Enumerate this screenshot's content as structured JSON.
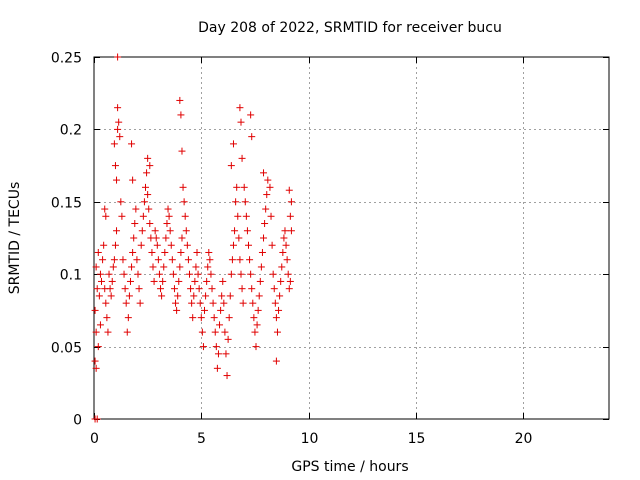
{
  "chart_data": {
    "type": "scatter",
    "title": "Day 208 of 2022, SRMTID for receiver bucu",
    "xlabel": "GPS time / hours",
    "ylabel": "SRMTID / TECUs",
    "xlim": [
      0,
      24
    ],
    "ylim": [
      0,
      0.25
    ],
    "x_ticks": [
      0,
      5,
      10,
      15,
      20
    ],
    "x_tick_labels": [
      "0",
      "5",
      "10",
      "15",
      "20"
    ],
    "y_ticks": [
      0,
      0.05,
      0.1,
      0.15,
      0.2,
      0.25
    ],
    "y_tick_labels": [
      "0",
      "0.05",
      "0.1",
      "0.15",
      "0.2",
      "0.25"
    ],
    "grid": true,
    "marker": "+",
    "color": "#e00000",
    "series": [
      {
        "name": "SRMTID",
        "points": [
          [
            0.05,
            0.0
          ],
          [
            0.15,
            0.0
          ],
          [
            0.1,
            0.035
          ],
          [
            0.05,
            0.04
          ],
          [
            0.2,
            0.05
          ],
          [
            0.1,
            0.06
          ],
          [
            0.3,
            0.065
          ],
          [
            0.05,
            0.075
          ],
          [
            0.25,
            0.085
          ],
          [
            0.15,
            0.09
          ],
          [
            0.35,
            0.095
          ],
          [
            0.1,
            0.105
          ],
          [
            0.4,
            0.11
          ],
          [
            0.2,
            0.115
          ],
          [
            0.45,
            0.12
          ],
          [
            0.3,
            0.1
          ],
          [
            0.5,
            0.09
          ],
          [
            0.55,
            0.08
          ],
          [
            0.6,
            0.07
          ],
          [
            0.65,
            0.06
          ],
          [
            0.5,
            0.145
          ],
          [
            0.55,
            0.14
          ],
          [
            0.7,
            0.1
          ],
          [
            0.75,
            0.09
          ],
          [
            0.8,
            0.085
          ],
          [
            0.85,
            0.095
          ],
          [
            0.9,
            0.105
          ],
          [
            0.95,
            0.11
          ],
          [
            1.0,
            0.12
          ],
          [
            1.05,
            0.13
          ],
          [
            0.95,
            0.19
          ],
          [
            1.0,
            0.175
          ],
          [
            1.05,
            0.165
          ],
          [
            1.1,
            0.2
          ],
          [
            1.1,
            0.215
          ],
          [
            1.15,
            0.205
          ],
          [
            1.2,
            0.195
          ],
          [
            1.1,
            0.25
          ],
          [
            1.25,
            0.15
          ],
          [
            1.3,
            0.14
          ],
          [
            1.35,
            0.11
          ],
          [
            1.4,
            0.1
          ],
          [
            1.45,
            0.09
          ],
          [
            1.5,
            0.08
          ],
          [
            1.55,
            0.06
          ],
          [
            1.6,
            0.07
          ],
          [
            1.65,
            0.085
          ],
          [
            1.7,
            0.095
          ],
          [
            1.75,
            0.105
          ],
          [
            1.8,
            0.115
          ],
          [
            1.85,
            0.125
          ],
          [
            1.9,
            0.135
          ],
          [
            1.95,
            0.145
          ],
          [
            1.75,
            0.19
          ],
          [
            1.8,
            0.165
          ],
          [
            2.0,
            0.11
          ],
          [
            2.05,
            0.1
          ],
          [
            2.1,
            0.09
          ],
          [
            2.15,
            0.08
          ],
          [
            2.2,
            0.12
          ],
          [
            2.25,
            0.13
          ],
          [
            2.3,
            0.14
          ],
          [
            2.35,
            0.15
          ],
          [
            2.4,
            0.16
          ],
          [
            2.45,
            0.17
          ],
          [
            2.5,
            0.155
          ],
          [
            2.55,
            0.145
          ],
          [
            2.6,
            0.135
          ],
          [
            2.65,
            0.125
          ],
          [
            2.7,
            0.115
          ],
          [
            2.5,
            0.18
          ],
          [
            2.6,
            0.175
          ],
          [
            2.75,
            0.105
          ],
          [
            2.8,
            0.095
          ],
          [
            2.85,
            0.13
          ],
          [
            2.9,
            0.125
          ],
          [
            2.95,
            0.12
          ],
          [
            3.0,
            0.11
          ],
          [
            3.05,
            0.1
          ],
          [
            3.1,
            0.09
          ],
          [
            3.15,
            0.085
          ],
          [
            3.2,
            0.095
          ],
          [
            3.25,
            0.105
          ],
          [
            3.3,
            0.115
          ],
          [
            3.35,
            0.125
          ],
          [
            3.4,
            0.135
          ],
          [
            3.45,
            0.145
          ],
          [
            3.5,
            0.14
          ],
          [
            3.55,
            0.13
          ],
          [
            3.6,
            0.12
          ],
          [
            3.65,
            0.11
          ],
          [
            3.7,
            0.1
          ],
          [
            3.75,
            0.09
          ],
          [
            3.8,
            0.08
          ],
          [
            3.85,
            0.075
          ],
          [
            3.9,
            0.085
          ],
          [
            3.95,
            0.095
          ],
          [
            4.0,
            0.105
          ],
          [
            4.05,
            0.115
          ],
          [
            4.1,
            0.125
          ],
          [
            4.0,
            0.22
          ],
          [
            4.05,
            0.21
          ],
          [
            4.1,
            0.185
          ],
          [
            4.15,
            0.16
          ],
          [
            4.2,
            0.15
          ],
          [
            4.25,
            0.14
          ],
          [
            4.3,
            0.13
          ],
          [
            4.35,
            0.12
          ],
          [
            4.4,
            0.11
          ],
          [
            4.45,
            0.1
          ],
          [
            4.5,
            0.09
          ],
          [
            4.55,
            0.08
          ],
          [
            4.6,
            0.07
          ],
          [
            4.65,
            0.085
          ],
          [
            4.7,
            0.095
          ],
          [
            4.75,
            0.105
          ],
          [
            4.8,
            0.115
          ],
          [
            4.85,
            0.1
          ],
          [
            4.9,
            0.09
          ],
          [
            4.95,
            0.08
          ],
          [
            5.0,
            0.07
          ],
          [
            5.05,
            0.06
          ],
          [
            5.1,
            0.05
          ],
          [
            5.15,
            0.075
          ],
          [
            5.2,
            0.085
          ],
          [
            5.25,
            0.095
          ],
          [
            5.3,
            0.105
          ],
          [
            5.35,
            0.115
          ],
          [
            5.4,
            0.11
          ],
          [
            5.45,
            0.1
          ],
          [
            5.5,
            0.09
          ],
          [
            5.55,
            0.08
          ],
          [
            5.6,
            0.07
          ],
          [
            5.65,
            0.06
          ],
          [
            5.7,
            0.05
          ],
          [
            5.75,
            0.035
          ],
          [
            5.8,
            0.045
          ],
          [
            5.85,
            0.065
          ],
          [
            5.9,
            0.075
          ],
          [
            5.95,
            0.085
          ],
          [
            6.0,
            0.095
          ],
          [
            6.05,
            0.08
          ],
          [
            6.1,
            0.06
          ],
          [
            6.15,
            0.045
          ],
          [
            6.2,
            0.03
          ],
          [
            6.25,
            0.055
          ],
          [
            6.3,
            0.07
          ],
          [
            6.35,
            0.085
          ],
          [
            6.4,
            0.1
          ],
          [
            6.45,
            0.11
          ],
          [
            6.5,
            0.12
          ],
          [
            6.55,
            0.13
          ],
          [
            6.6,
            0.15
          ],
          [
            6.65,
            0.16
          ],
          [
            6.4,
            0.175
          ],
          [
            6.5,
            0.19
          ],
          [
            6.7,
            0.14
          ],
          [
            6.75,
            0.125
          ],
          [
            6.8,
            0.11
          ],
          [
            6.85,
            0.1
          ],
          [
            6.9,
            0.09
          ],
          [
            6.95,
            0.08
          ],
          [
            6.8,
            0.215
          ],
          [
            6.85,
            0.205
          ],
          [
            6.9,
            0.18
          ],
          [
            7.0,
            0.16
          ],
          [
            7.05,
            0.15
          ],
          [
            7.1,
            0.14
          ],
          [
            7.15,
            0.13
          ],
          [
            7.2,
            0.12
          ],
          [
            7.25,
            0.11
          ],
          [
            7.3,
            0.1
          ],
          [
            7.35,
            0.09
          ],
          [
            7.4,
            0.08
          ],
          [
            7.3,
            0.21
          ],
          [
            7.35,
            0.195
          ],
          [
            7.45,
            0.07
          ],
          [
            7.5,
            0.06
          ],
          [
            7.55,
            0.05
          ],
          [
            7.6,
            0.065
          ],
          [
            7.65,
            0.075
          ],
          [
            7.7,
            0.085
          ],
          [
            7.75,
            0.095
          ],
          [
            7.8,
            0.105
          ],
          [
            7.85,
            0.115
          ],
          [
            7.9,
            0.125
          ],
          [
            7.95,
            0.135
          ],
          [
            8.0,
            0.145
          ],
          [
            8.05,
            0.155
          ],
          [
            8.1,
            0.165
          ],
          [
            7.9,
            0.17
          ],
          [
            8.2,
            0.16
          ],
          [
            8.25,
            0.14
          ],
          [
            8.3,
            0.12
          ],
          [
            8.35,
            0.1
          ],
          [
            8.4,
            0.09
          ],
          [
            8.45,
            0.08
          ],
          [
            8.5,
            0.07
          ],
          [
            8.55,
            0.06
          ],
          [
            8.5,
            0.04
          ],
          [
            8.6,
            0.075
          ],
          [
            8.65,
            0.085
          ],
          [
            8.7,
            0.095
          ],
          [
            8.75,
            0.105
          ],
          [
            8.8,
            0.115
          ],
          [
            8.85,
            0.125
          ],
          [
            8.9,
            0.13
          ],
          [
            8.95,
            0.12
          ],
          [
            9.0,
            0.11
          ],
          [
            9.05,
            0.1
          ],
          [
            9.1,
            0.09
          ],
          [
            9.15,
            0.14
          ],
          [
            9.2,
            0.15
          ],
          [
            9.1,
            0.158
          ],
          [
            9.2,
            0.13
          ],
          [
            9.15,
            0.095
          ]
        ]
      }
    ]
  }
}
